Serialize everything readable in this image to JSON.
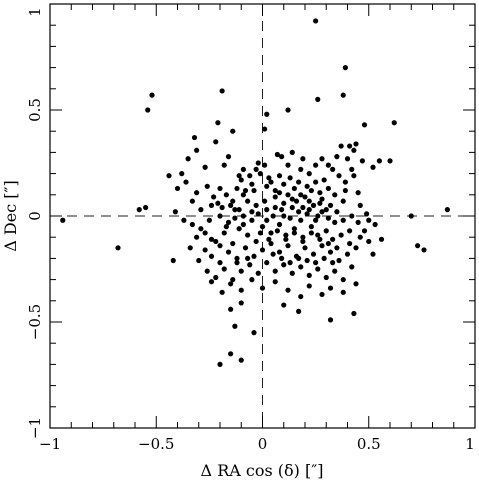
{
  "chart_data": {
    "type": "scatter",
    "xlabel": "Δ RA cos (δ) [″]",
    "ylabel": "Δ Dec [″]",
    "xlim": [
      -1,
      1
    ],
    "ylim": [
      -1,
      1
    ],
    "x_ticks": [
      "−1",
      "−0.5",
      "0",
      "0.5",
      "1"
    ],
    "y_ticks": [
      "−1",
      "−0.5",
      "0",
      "0.5",
      "1"
    ],
    "x_tick_values": [
      -1,
      -0.5,
      0,
      0.5,
      1
    ],
    "y_tick_values": [
      -1,
      -0.5,
      0,
      0.5,
      1
    ],
    "reference_lines": {
      "x": 0,
      "y": 0,
      "style": "dashed"
    },
    "grid": false,
    "marker_color": "#000000",
    "points": [
      [
        0.25,
        0.92
      ],
      [
        0.39,
        0.7
      ],
      [
        0.38,
        0.57
      ],
      [
        0.26,
        0.55
      ],
      [
        0.12,
        0.5
      ],
      [
        0.02,
        0.48
      ],
      [
        -0.52,
        0.57
      ],
      [
        -0.54,
        0.5
      ],
      [
        -0.19,
        0.59
      ],
      [
        -0.21,
        0.44
      ],
      [
        -0.14,
        0.4
      ],
      [
        0.01,
        0.41
      ],
      [
        0.48,
        0.43
      ],
      [
        0.62,
        0.44
      ],
      [
        -0.32,
        0.37
      ],
      [
        -0.31,
        0.31
      ],
      [
        -0.22,
        0.35
      ],
      [
        -0.35,
        0.27
      ],
      [
        -0.16,
        0.28
      ],
      [
        -0.27,
        0.23
      ],
      [
        -0.18,
        0.24
      ],
      [
        -0.09,
        0.22
      ],
      [
        -0.02,
        0.25
      ],
      [
        0.07,
        0.29
      ],
      [
        0.09,
        0.28
      ],
      [
        0.14,
        0.3
      ],
      [
        0.28,
        0.27
      ],
      [
        0.31,
        0.24
      ],
      [
        0.35,
        0.28
      ],
      [
        0.37,
        0.33
      ],
      [
        0.41,
        0.33
      ],
      [
        0.43,
        0.31
      ],
      [
        0.44,
        0.34
      ],
      [
        0.47,
        0.26
      ],
      [
        0.55,
        0.26
      ],
      [
        0.6,
        0.26
      ],
      [
        0.52,
        0.23
      ],
      [
        0.42,
        0.22
      ],
      [
        0.36,
        0.19
      ],
      [
        0.29,
        0.17
      ],
      [
        0.22,
        0.2
      ],
      [
        0.18,
        0.22
      ],
      [
        0.12,
        0.24
      ],
      [
        0.03,
        0.18
      ],
      [
        -0.06,
        0.19
      ],
      [
        -0.1,
        0.17
      ],
      [
        -0.12,
        0.13
      ],
      [
        -0.17,
        0.1
      ],
      [
        -0.2,
        0.13
      ],
      [
        -0.26,
        0.14
      ],
      [
        -0.38,
        0.2
      ],
      [
        -0.44,
        0.19
      ],
      [
        -0.36,
        0.16
      ],
      [
        -0.4,
        0.13
      ],
      [
        -0.31,
        0.11
      ],
      [
        -0.23,
        0.09
      ],
      [
        -0.14,
        0.07
      ],
      [
        -0.09,
        0.1
      ],
      [
        -0.04,
        0.12
      ],
      [
        0.02,
        0.14
      ],
      [
        0.06,
        0.12
      ],
      [
        0.1,
        0.15
      ],
      [
        0.15,
        0.13
      ],
      [
        0.18,
        0.1
      ],
      [
        0.23,
        0.12
      ],
      [
        0.27,
        0.11
      ],
      [
        0.31,
        0.13
      ],
      [
        0.34,
        0.1
      ],
      [
        0.39,
        0.12
      ],
      [
        0.45,
        0.11
      ],
      [
        0.38,
        0.07
      ],
      [
        0.32,
        0.05
      ],
      [
        0.27,
        0.06
      ],
      [
        0.22,
        0.07
      ],
      [
        0.19,
        0.04
      ],
      [
        0.14,
        0.08
      ],
      [
        0.1,
        0.06
      ],
      [
        0.06,
        0.09
      ],
      [
        0.01,
        0.07
      ],
      [
        -0.03,
        0.05
      ],
      [
        -0.07,
        0.07
      ],
      [
        -0.11,
        0.03
      ],
      [
        -0.15,
        0.05
      ],
      [
        -0.19,
        0.04
      ],
      [
        -0.24,
        0.05
      ],
      [
        -0.29,
        0.03
      ],
      [
        -0.33,
        0.07
      ],
      [
        -0.41,
        0.02
      ],
      [
        -0.55,
        0.04
      ],
      [
        -0.58,
        0.03
      ],
      [
        -0.94,
        -0.02
      ],
      [
        -0.68,
        -0.15
      ],
      [
        0.87,
        0.03
      ],
      [
        0.7,
        0.0
      ],
      [
        0.73,
        -0.14
      ],
      [
        0.76,
        -0.16
      ],
      [
        0.53,
        -0.04
      ],
      [
        0.5,
        -0.12
      ],
      [
        0.52,
        -0.18
      ],
      [
        0.56,
        -0.11
      ],
      [
        0.48,
        -0.07
      ],
      [
        0.45,
        -0.03
      ],
      [
        0.42,
        0.0
      ],
      [
        0.38,
        -0.02
      ],
      [
        0.35,
        0.02
      ],
      [
        0.31,
        -0.01
      ],
      [
        0.28,
        0.02
      ],
      [
        0.25,
        -0.02
      ],
      [
        0.21,
        0.01
      ],
      [
        0.17,
        0.02
      ],
      [
        0.13,
        -0.01
      ],
      [
        0.09,
        0.03
      ],
      [
        0.05,
        0.0
      ],
      [
        0.02,
        0.03
      ],
      [
        -0.02,
        0.01
      ],
      [
        -0.05,
        -0.02
      ],
      [
        -0.09,
        0.0
      ],
      [
        -0.13,
        -0.01
      ],
      [
        -0.16,
        -0.03
      ],
      [
        -0.2,
        0.0
      ],
      [
        -0.25,
        -0.02
      ],
      [
        -0.29,
        -0.06
      ],
      [
        -0.33,
        -0.04
      ],
      [
        -0.37,
        -0.02
      ],
      [
        -0.42,
        -0.21
      ],
      [
        -0.34,
        -0.15
      ],
      [
        -0.3,
        -0.21
      ],
      [
        -0.26,
        -0.26
      ],
      [
        -0.22,
        -0.12
      ],
      [
        -0.18,
        -0.08
      ],
      [
        -0.14,
        -0.13
      ],
      [
        -0.11,
        -0.06
      ],
      [
        -0.07,
        -0.09
      ],
      [
        -0.03,
        -0.12
      ],
      [
        0.0,
        -0.05
      ],
      [
        0.04,
        -0.08
      ],
      [
        0.08,
        -0.04
      ],
      [
        0.11,
        -0.09
      ],
      [
        0.15,
        -0.06
      ],
      [
        0.19,
        -0.1
      ],
      [
        0.23,
        -0.05
      ],
      [
        0.26,
        -0.09
      ],
      [
        0.3,
        -0.07
      ],
      [
        0.33,
        -0.11
      ],
      [
        0.37,
        -0.09
      ],
      [
        0.41,
        -0.13
      ],
      [
        0.44,
        -0.15
      ],
      [
        0.4,
        -0.18
      ],
      [
        0.36,
        -0.21
      ],
      [
        0.32,
        -0.17
      ],
      [
        0.28,
        -0.14
      ],
      [
        0.24,
        -0.18
      ],
      [
        0.2,
        -0.15
      ],
      [
        0.16,
        -0.19
      ],
      [
        0.12,
        -0.14
      ],
      [
        0.08,
        -0.17
      ],
      [
        0.04,
        -0.13
      ],
      [
        0.0,
        -0.16
      ],
      [
        -0.04,
        -0.19
      ],
      [
        -0.08,
        -0.15
      ],
      [
        -0.12,
        -0.2
      ],
      [
        -0.16,
        -0.17
      ],
      [
        -0.2,
        -0.22
      ],
      [
        -0.24,
        -0.19
      ],
      [
        -0.27,
        -0.16
      ],
      [
        -0.22,
        -0.29
      ],
      [
        -0.18,
        -0.25
      ],
      [
        -0.14,
        -0.3
      ],
      [
        -0.1,
        -0.26
      ],
      [
        -0.06,
        -0.23
      ],
      [
        -0.02,
        -0.27
      ],
      [
        0.02,
        -0.22
      ],
      [
        0.06,
        -0.26
      ],
      [
        0.1,
        -0.23
      ],
      [
        0.14,
        -0.27
      ],
      [
        0.18,
        -0.24
      ],
      [
        0.22,
        -0.28
      ],
      [
        0.26,
        -0.25
      ],
      [
        0.3,
        -0.29
      ],
      [
        0.34,
        -0.26
      ],
      [
        0.38,
        -0.3
      ],
      [
        0.42,
        -0.24
      ],
      [
        0.44,
        -0.32
      ],
      [
        0.38,
        -0.36
      ],
      [
        0.32,
        -0.34
      ],
      [
        0.28,
        -0.37
      ],
      [
        0.22,
        -0.33
      ],
      [
        0.18,
        -0.38
      ],
      [
        0.12,
        -0.35
      ],
      [
        0.06,
        -0.31
      ],
      [
        0.0,
        -0.34
      ],
      [
        -0.05,
        -0.3
      ],
      [
        -0.1,
        -0.35
      ],
      [
        -0.15,
        -0.32
      ],
      [
        -0.19,
        -0.36
      ],
      [
        -0.24,
        -0.31
      ],
      [
        -0.15,
        -0.44
      ],
      [
        -0.1,
        -0.41
      ],
      [
        0.1,
        -0.42
      ],
      [
        0.17,
        -0.45
      ],
      [
        0.32,
        -0.49
      ],
      [
        0.43,
        -0.46
      ],
      [
        -0.13,
        -0.52
      ],
      [
        -0.04,
        -0.55
      ],
      [
        -0.2,
        -0.7
      ],
      [
        -0.15,
        -0.65
      ],
      [
        -0.1,
        -0.68
      ],
      [
        0.02,
        -0.02
      ],
      [
        0.06,
        0.04
      ],
      [
        0.1,
        0.0
      ],
      [
        0.14,
        0.04
      ],
      [
        0.18,
        -0.02
      ],
      [
        0.22,
        0.03
      ],
      [
        0.26,
        0.0
      ],
      [
        0.3,
        0.03
      ],
      [
        0.34,
        -0.03
      ],
      [
        -0.01,
        -0.08
      ],
      [
        0.03,
        -0.11
      ],
      [
        0.07,
        -0.07
      ],
      [
        0.11,
        -0.11
      ],
      [
        0.15,
        -0.08
      ],
      [
        0.19,
        -0.12
      ],
      [
        0.23,
        -0.08
      ],
      [
        0.27,
        -0.11
      ],
      [
        0.31,
        -0.13
      ],
      [
        0.35,
        -0.15
      ],
      [
        -0.05,
        0.02
      ],
      [
        -0.09,
        -0.04
      ],
      [
        -0.13,
        0.03
      ],
      [
        -0.17,
        -0.05
      ],
      [
        -0.21,
        0.06
      ],
      [
        0.08,
        0.11
      ],
      [
        0.12,
        0.1
      ],
      [
        0.16,
        0.07
      ],
      [
        0.2,
        0.09
      ],
      [
        0.24,
        0.05
      ],
      [
        0.28,
        0.08
      ],
      [
        0.04,
        0.16
      ],
      [
        0.08,
        0.19
      ],
      [
        0.13,
        0.18
      ],
      [
        0.17,
        0.16
      ],
      [
        0.21,
        0.14
      ],
      [
        0.25,
        0.16
      ],
      [
        -0.01,
        0.2
      ],
      [
        -0.05,
        0.15
      ],
      [
        -0.08,
        0.12
      ],
      [
        0.46,
        0.05
      ],
      [
        0.49,
        0.01
      ],
      [
        0.41,
        -0.07
      ],
      [
        0.46,
        -0.1
      ],
      [
        0.5,
        -0.02
      ],
      [
        0.39,
        0.16
      ],
      [
        0.43,
        0.19
      ],
      [
        0.33,
        0.22
      ],
      [
        -0.31,
        -0.1
      ],
      [
        -0.27,
        -0.08
      ],
      [
        -0.24,
        -0.11
      ],
      [
        -0.2,
        -0.14
      ],
      [
        -0.12,
        -0.22
      ],
      [
        -0.07,
        -0.2
      ],
      [
        0.05,
        -0.18
      ],
      [
        0.09,
        -0.2
      ],
      [
        0.13,
        -0.22
      ],
      [
        0.17,
        -0.2
      ],
      [
        0.21,
        -0.21
      ],
      [
        0.25,
        -0.22
      ],
      [
        0.29,
        -0.2
      ],
      [
        0.33,
        -0.22
      ],
      [
        -0.11,
        0.19
      ],
      [
        -0.03,
        0.22
      ],
      [
        0.01,
        0.24
      ],
      [
        0.19,
        0.27
      ],
      [
        0.25,
        0.24
      ],
      [
        0.4,
        0.27
      ]
    ]
  }
}
